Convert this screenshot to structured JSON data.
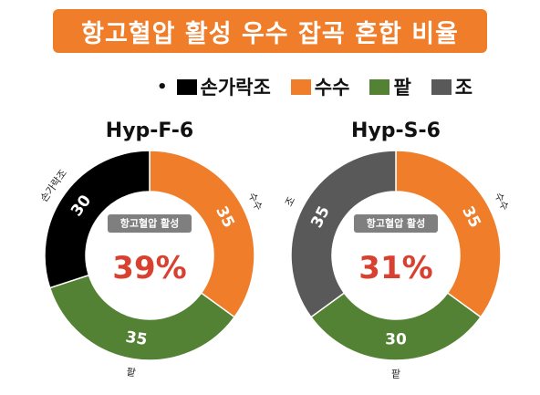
{
  "title": "항고혈압 활성 우수 잡곡 혼합 비율",
  "legend": [
    {
      "label": "손가락조",
      "color": "#000000"
    },
    {
      "label": "수수",
      "color": "#ef7d2a"
    },
    {
      "label": "팥",
      "color": "#538234"
    },
    {
      "label": "조",
      "color": "#595959"
    }
  ],
  "chart_data": [
    {
      "type": "pie",
      "title": "Hyp-F-6",
      "center_badge": "항고혈압 활성",
      "center_value": "39%",
      "slices": [
        {
          "label": "수수",
          "value": 35,
          "color": "#ef7d2a"
        },
        {
          "label": "팥",
          "value": 35,
          "color": "#538234"
        },
        {
          "label": "손가락조",
          "value": 30,
          "color": "#000000"
        }
      ]
    },
    {
      "type": "pie",
      "title": "Hyp-S-6",
      "center_badge": "항고혈압 활성",
      "center_value": "31%",
      "slices": [
        {
          "label": "수수",
          "value": 35,
          "color": "#ef7d2a"
        },
        {
          "label": "팥",
          "value": 30,
          "color": "#538234"
        },
        {
          "label": "조",
          "value": 35,
          "color": "#595959"
        }
      ]
    }
  ]
}
